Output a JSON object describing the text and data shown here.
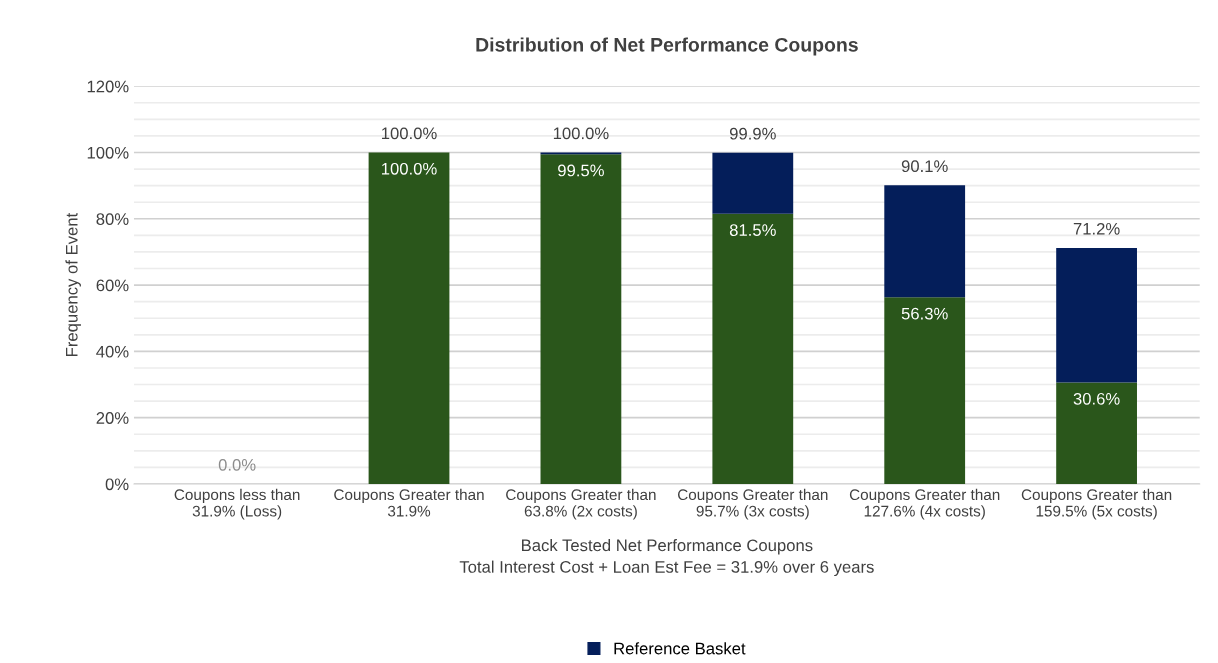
{
  "chart_data": {
    "type": "bar",
    "title": "Distribution of Net Performance Coupons",
    "xlabel": "Back Tested Net Performance Coupons\nTotal Interest Cost + Loan Est Fee = 31.9% over 6 years",
    "ylabel": "Frequency of Event",
    "categories": [
      "Coupons less than\n31.9% (Loss)",
      "Coupons Greater than\n31.9%",
      "Coupons Greater than\n63.8% (2x costs)",
      "Coupons Greater than\n95.7% (3x costs)",
      "Coupons Greater than\n127.6% (4x costs)",
      "Coupons Greater than\n159.5% (5x costs)"
    ],
    "stacked": true,
    "series": [
      {
        "color": "#2a561b",
        "values": [
          0,
          100,
          99.5,
          81.5,
          56.3,
          30.6
        ],
        "value_labels": [
          "0.0%",
          "100.0%",
          "99.5%",
          "81.5%",
          "56.3%",
          "30.6%"
        ]
      },
      {
        "name": "Reference Basket",
        "color": "#041e5a",
        "values": [
          0,
          0,
          0.5,
          18.4,
          33.8,
          40.6
        ]
      }
    ],
    "totals": [
      null,
      "100.0%",
      "100.0%",
      "99.9%",
      "90.1%",
      "71.2%"
    ],
    "ylim": [
      0,
      120
    ],
    "yticks": [
      {
        "value": 0,
        "label": "0%"
      },
      {
        "value": 5,
        "label": null
      },
      {
        "value": 10,
        "label": null
      },
      {
        "value": 15,
        "label": null
      },
      {
        "value": 20,
        "label": "20%"
      },
      {
        "value": 25,
        "label": null
      },
      {
        "value": 30,
        "label": null
      },
      {
        "value": 35,
        "label": null
      },
      {
        "value": 40,
        "label": "40%"
      },
      {
        "value": 45,
        "label": null
      },
      {
        "value": 50,
        "label": null
      },
      {
        "value": 55,
        "label": null
      },
      {
        "value": 60,
        "label": "60%"
      },
      {
        "value": 65,
        "label": null
      },
      {
        "value": 70,
        "label": null
      },
      {
        "value": 75,
        "label": null
      },
      {
        "value": 80,
        "label": "80%"
      },
      {
        "value": 85,
        "label": null
      },
      {
        "value": 90,
        "label": null
      },
      {
        "value": 95,
        "label": null
      },
      {
        "value": 100,
        "label": "100%"
      },
      {
        "value": 105,
        "label": null
      },
      {
        "value": 110,
        "label": null
      },
      {
        "value": 115,
        "label": null
      },
      {
        "value": 120,
        "label": "120%"
      }
    ],
    "grid": "y",
    "legend": "bottom"
  }
}
